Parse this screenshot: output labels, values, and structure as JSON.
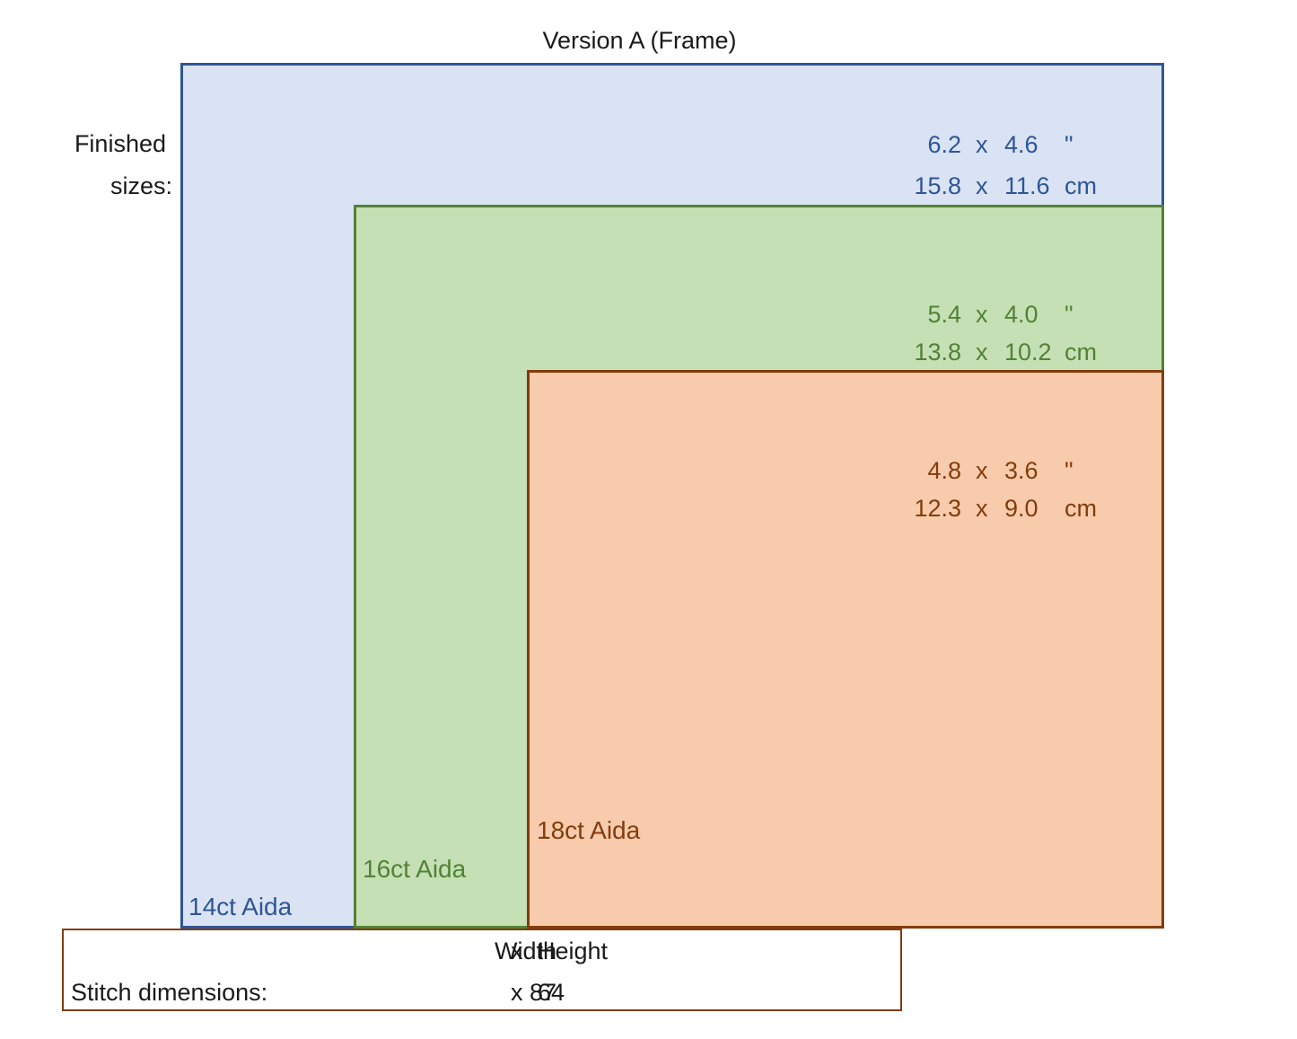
{
  "title": "Version A (Frame)",
  "finished_sizes_label": [
    "Finished",
    "sizes:"
  ],
  "colors": {
    "aida14_fill": "#dae3f3",
    "aida14_stroke": "#2f5597",
    "aida16_fill": "#c5e0b4",
    "aida16_stroke": "#538135",
    "aida18_fill": "#f8cbad",
    "aida18_stroke": "#843c0c"
  },
  "fabrics": [
    {
      "label": "14ct Aida",
      "inches": {
        "w": "6.2",
        "x": "x",
        "h": "4.6",
        "unit": "\""
      },
      "cm": {
        "w": "15.8",
        "x": "x",
        "h": "11.6",
        "unit": "cm"
      }
    },
    {
      "label": "16ct Aida",
      "inches": {
        "w": "5.4",
        "x": "x",
        "h": "4.0",
        "unit": "\""
      },
      "cm": {
        "w": "13.8",
        "x": "x",
        "h": "10.2",
        "unit": "cm"
      }
    },
    {
      "label": "18ct Aida",
      "inches": {
        "w": "4.8",
        "x": "x",
        "h": "3.6",
        "unit": "\""
      },
      "cm": {
        "w": "12.3",
        "x": "x",
        "h": "9.0",
        "unit": "cm"
      }
    }
  ],
  "stitch": {
    "header_width": "Width",
    "header_x": "x",
    "header_height": "Height",
    "label": "Stitch dimensions:",
    "width": "87",
    "x": "x",
    "height": "64"
  }
}
